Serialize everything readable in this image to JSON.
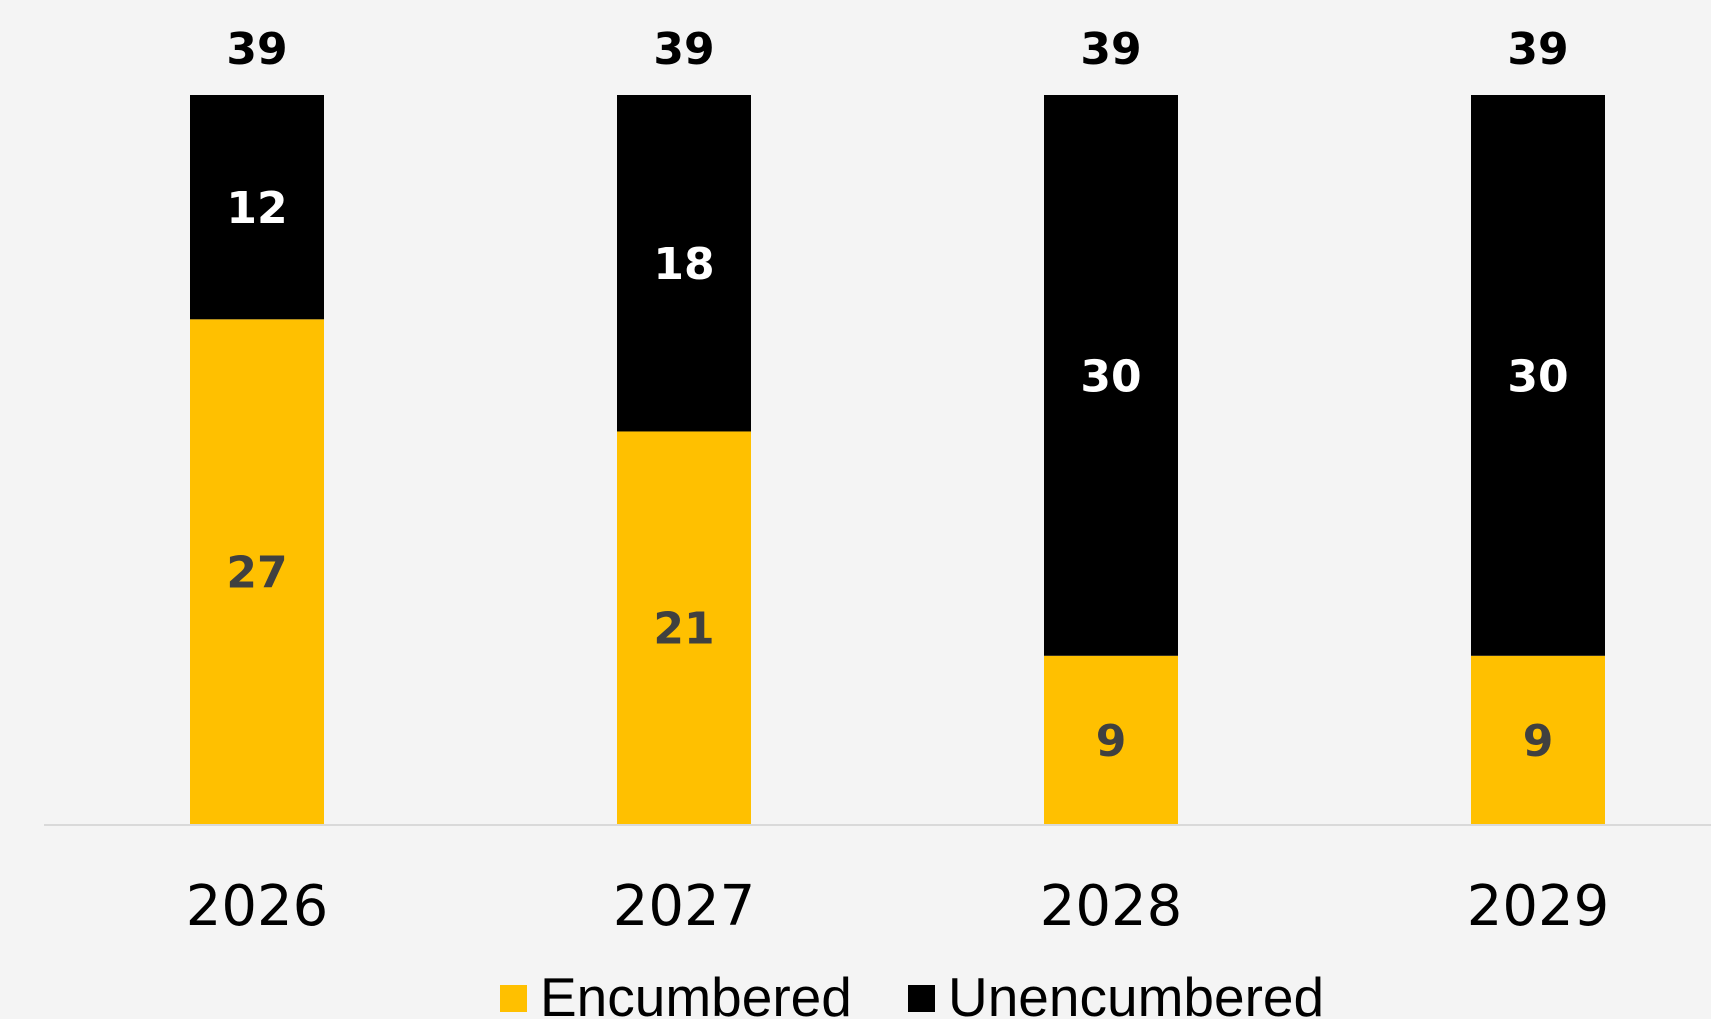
{
  "chart_data": {
    "type": "bar",
    "stacked": true,
    "categories": [
      "2026",
      "2027",
      "2028",
      "2029"
    ],
    "series": [
      {
        "name": "Encumbered",
        "values": [
          27,
          21,
          9,
          9
        ],
        "color": "#FFC000",
        "label_color": "#404040"
      },
      {
        "name": "Unencumbered",
        "values": [
          12,
          18,
          30,
          30
        ],
        "color": "#000000",
        "label_color": "#FFFFFF"
      }
    ],
    "totals": [
      "39",
      "39",
      "39",
      "39"
    ],
    "ylim": [
      0,
      39
    ],
    "grid": false,
    "legend_position": "bottom",
    "title": "",
    "xlabel": "",
    "ylabel": ""
  },
  "colors": {
    "background": "#f4f4f4",
    "axis_line": "#d9d9d9"
  }
}
